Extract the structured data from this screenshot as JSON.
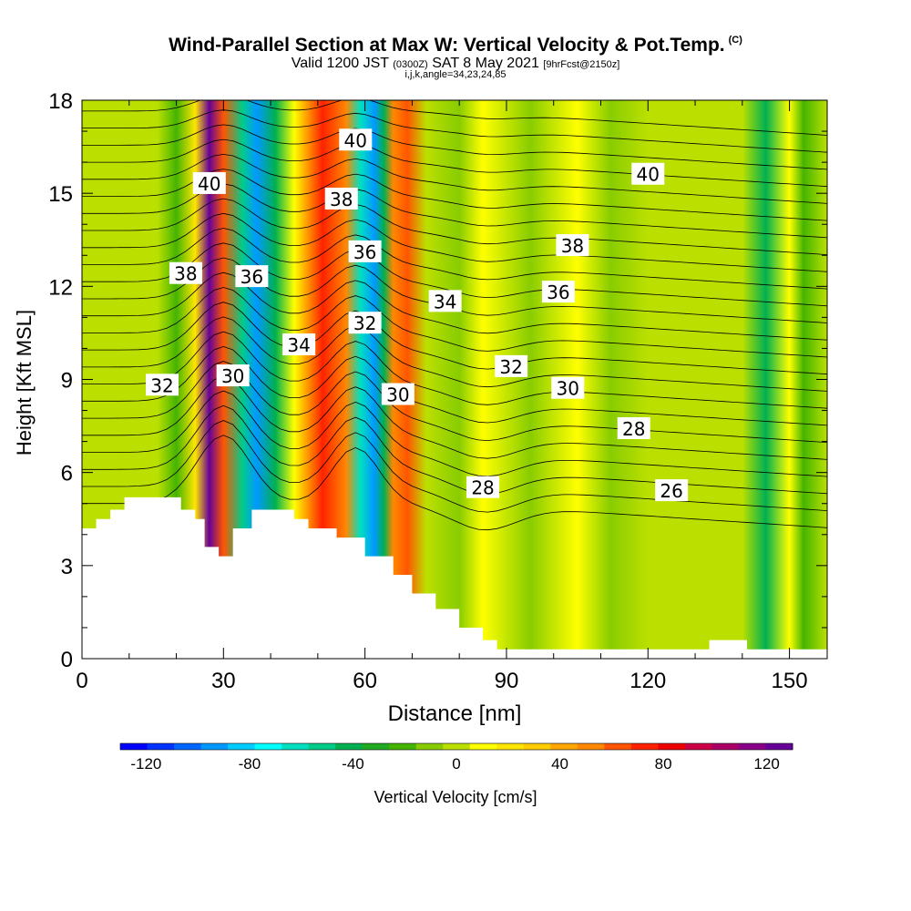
{
  "title": {
    "main": "Wind-Parallel Section at Max W: Vertical Velocity & Pot.Temp.",
    "copyright": "(C)",
    "valid_prefix": "Valid 1200 JST",
    "valid_utc": "(0300Z)",
    "valid_date": "SAT 8 May 2021",
    "forecast": "[9hrFcst@2150z]",
    "indices": "i,j,k,angle=34,23,24,85"
  },
  "chart_data": {
    "type": "heatmap",
    "xlabel": "Distance [nm]",
    "ylabel": "Height [Kft MSL]",
    "xlim": [
      0,
      158
    ],
    "ylim": [
      0,
      18
    ],
    "x_ticks": [
      0,
      30,
      60,
      90,
      120,
      150
    ],
    "y_ticks": [
      0,
      3,
      6,
      9,
      12,
      15,
      18
    ],
    "colorbar": {
      "label": "Vertical Velocity [cm/s]",
      "ticks": [
        -120,
        -80,
        -40,
        0,
        40,
        80,
        120
      ],
      "range": [
        -130,
        130
      ],
      "colors": [
        "#0000ff",
        "#0033ff",
        "#0066ff",
        "#0099ff",
        "#00ccff",
        "#00ffff",
        "#00e0c0",
        "#00cc88",
        "#00b050",
        "#22aa22",
        "#44b400",
        "#88cc00",
        "#bbe000",
        "#ffff00",
        "#ffe600",
        "#ffcc00",
        "#ffa500",
        "#ff8800",
        "#ff5500",
        "#ff2200",
        "#ee0000",
        "#cc0044",
        "#aa0066",
        "#880088",
        "#660099"
      ]
    },
    "vertical_velocity_columns": [
      {
        "x": 0,
        "w": 0
      },
      {
        "x": 8,
        "w": 5
      },
      {
        "x": 16,
        "w": -5
      },
      {
        "x": 20,
        "w": -25
      },
      {
        "x": 24,
        "w": 25
      },
      {
        "x": 27,
        "w": 120
      },
      {
        "x": 30,
        "w": 60
      },
      {
        "x": 34,
        "w": -50
      },
      {
        "x": 37,
        "w": -95
      },
      {
        "x": 41,
        "w": -40
      },
      {
        "x": 45,
        "w": 15
      },
      {
        "x": 51,
        "w": 70
      },
      {
        "x": 56,
        "w": 50
      },
      {
        "x": 59,
        "w": -60
      },
      {
        "x": 62,
        "w": -90
      },
      {
        "x": 64,
        "w": -45
      },
      {
        "x": 66,
        "w": 55
      },
      {
        "x": 69,
        "w": 60
      },
      {
        "x": 73,
        "w": 5
      },
      {
        "x": 80,
        "w": -15
      },
      {
        "x": 85,
        "w": 10
      },
      {
        "x": 95,
        "w": -10
      },
      {
        "x": 105,
        "w": 10
      },
      {
        "x": 112,
        "w": -10
      },
      {
        "x": 120,
        "w": 0
      },
      {
        "x": 130,
        "w": 5
      },
      {
        "x": 140,
        "w": -5
      },
      {
        "x": 145,
        "w": -40
      },
      {
        "x": 150,
        "w": 10
      },
      {
        "x": 153,
        "w": -20
      },
      {
        "x": 158,
        "w": 5
      }
    ],
    "terrain": [
      {
        "x": 0,
        "h": 4.2
      },
      {
        "x": 3,
        "h": 4.5
      },
      {
        "x": 6,
        "h": 4.8
      },
      {
        "x": 9,
        "h": 5.2
      },
      {
        "x": 18,
        "h": 5.2
      },
      {
        "x": 21,
        "h": 4.8
      },
      {
        "x": 24,
        "h": 4.5
      },
      {
        "x": 26,
        "h": 3.6
      },
      {
        "x": 29,
        "h": 3.3
      },
      {
        "x": 32,
        "h": 4.2
      },
      {
        "x": 36,
        "h": 4.8
      },
      {
        "x": 42,
        "h": 4.8
      },
      {
        "x": 45,
        "h": 4.5
      },
      {
        "x": 48,
        "h": 4.2
      },
      {
        "x": 54,
        "h": 3.9
      },
      {
        "x": 60,
        "h": 3.3
      },
      {
        "x": 66,
        "h": 2.7
      },
      {
        "x": 70,
        "h": 2.1
      },
      {
        "x": 75,
        "h": 1.6
      },
      {
        "x": 80,
        "h": 1.0
      },
      {
        "x": 85,
        "h": 0.6
      },
      {
        "x": 88,
        "h": 0.3
      },
      {
        "x": 90,
        "h": 0.3
      },
      {
        "x": 132,
        "h": 0.3
      },
      {
        "x": 133,
        "h": 0.6
      },
      {
        "x": 140,
        "h": 0.6
      },
      {
        "x": 141,
        "h": 0.3
      },
      {
        "x": 158,
        "h": 0.3
      }
    ],
    "isotherm_labels": [
      {
        "text": "40",
        "x": 27,
        "y": 15.3
      },
      {
        "text": "40",
        "x": 58,
        "y": 16.7
      },
      {
        "text": "40",
        "x": 120,
        "y": 15.6
      },
      {
        "text": "38",
        "x": 22,
        "y": 12.4
      },
      {
        "text": "38",
        "x": 55,
        "y": 14.8
      },
      {
        "text": "38",
        "x": 104,
        "y": 13.3
      },
      {
        "text": "36",
        "x": 36,
        "y": 12.3
      },
      {
        "text": "36",
        "x": 60,
        "y": 13.1
      },
      {
        "text": "36",
        "x": 101,
        "y": 11.8
      },
      {
        "text": "34",
        "x": 46,
        "y": 10.1
      },
      {
        "text": "34",
        "x": 77,
        "y": 11.5
      },
      {
        "text": "32",
        "x": 17,
        "y": 8.8
      },
      {
        "text": "32",
        "x": 60,
        "y": 10.8
      },
      {
        "text": "32",
        "x": 91,
        "y": 9.4
      },
      {
        "text": "30",
        "x": 32,
        "y": 9.1
      },
      {
        "text": "30",
        "x": 67,
        "y": 8.5
      },
      {
        "text": "30",
        "x": 103,
        "y": 8.7
      },
      {
        "text": "28",
        "x": 85,
        "y": 5.5
      },
      {
        "text": "28",
        "x": 117,
        "y": 7.4
      },
      {
        "text": "26",
        "x": 125,
        "y": 5.4
      }
    ]
  }
}
